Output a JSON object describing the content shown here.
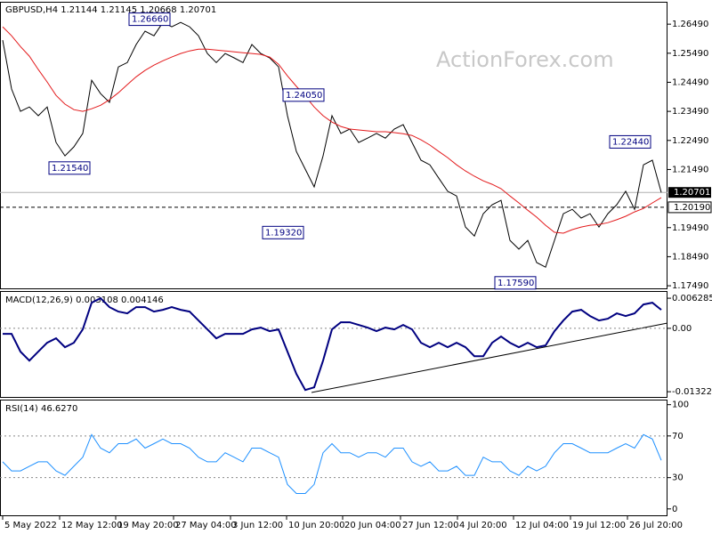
{
  "chart_data": [
    {
      "type": "line",
      "title": "GBPUSD,H4  1.21144 1.21145 1.20668 1.20701",
      "watermark": "ActionForex.com",
      "xlim": [
        -0.3,
        74.7
      ],
      "ylim": [
        1.1737,
        1.2726
      ],
      "yticks": [
        {
          "value": 1.2649,
          "label": "1.26490"
        },
        {
          "value": 1.2549,
          "label": "1.25490"
        },
        {
          "value": 1.2449,
          "label": "1.24490"
        },
        {
          "value": 1.2349,
          "label": "1.23490"
        },
        {
          "value": 1.2249,
          "label": "1.22490"
        },
        {
          "value": 1.2149,
          "label": "1.21490"
        },
        {
          "value": 1.1949,
          "label": "1.19490"
        },
        {
          "value": 1.1849,
          "label": "1.18490"
        },
        {
          "value": 1.1749,
          "label": "1.17490"
        }
      ],
      "series": [
        {
          "color": "#000000",
          "values": [
            1.2594,
            1.2426,
            1.2349,
            1.2364,
            1.2334,
            1.2364,
            1.2242,
            1.2196,
            1.2227,
            1.2273,
            1.2456,
            1.241,
            1.238,
            1.2502,
            1.2517,
            1.2579,
            1.2625,
            1.2609,
            1.2655,
            1.264,
            1.2655,
            1.264,
            1.2609,
            1.2548,
            1.2517,
            1.2548,
            1.2533,
            1.2517,
            1.2579,
            1.2548,
            1.2533,
            1.2502,
            1.2334,
            1.2211,
            1.215,
            1.2089,
            1.2196,
            1.2334,
            1.2273,
            1.2288,
            1.2242,
            1.2257,
            1.2273,
            1.2257,
            1.2288,
            1.2303,
            1.2242,
            1.2181,
            1.2165,
            1.2119,
            1.2074,
            1.2058,
            1.1951,
            1.192,
            1.1997,
            1.2028,
            1.2043,
            1.1905,
            1.1875,
            1.1905,
            1.1829,
            1.1813,
            1.1905,
            1.1997,
            1.2012,
            1.1982,
            1.1997,
            1.1951,
            1.1997,
            1.2028,
            1.2074,
            1.2012,
            1.2165,
            1.2181,
            1.207
          ]
        },
        {
          "color": "#e31a1c",
          "values": [
            1.264,
            1.2609,
            1.2572,
            1.2539,
            1.2493,
            1.245,
            1.2404,
            1.2374,
            1.2355,
            1.2349,
            1.2358,
            1.237,
            1.2389,
            1.2413,
            1.2441,
            1.2468,
            1.249,
            1.2508,
            1.2523,
            1.2536,
            1.2548,
            1.2557,
            1.2563,
            1.2563,
            1.256,
            1.2557,
            1.2554,
            1.2551,
            1.2548,
            1.2545,
            1.2536,
            1.2511,
            1.2471,
            1.2435,
            1.2401,
            1.2364,
            1.2334,
            1.2312,
            1.2297,
            1.2288,
            1.2285,
            1.2282,
            1.2279,
            1.2279,
            1.2276,
            1.2272,
            1.2266,
            1.2251,
            1.2233,
            1.2211,
            1.219,
            1.2165,
            1.2144,
            1.2126,
            1.211,
            1.2098,
            1.2083,
            1.2058,
            1.2034,
            1.2009,
            1.1985,
            1.1957,
            1.1933,
            1.193,
            1.1942,
            1.1951,
            1.1957,
            1.196,
            1.1966,
            1.1976,
            1.1988,
            1.2003,
            1.2015,
            1.2034,
            1.2052
          ]
        }
      ],
      "annotations": [
        {
          "value": 1.2666,
          "label": "1.26660"
        },
        {
          "value": 1.2154,
          "label": "1.21540"
        },
        {
          "value": 1.2405,
          "label": "1.24050"
        },
        {
          "value": 1.1932,
          "label": "1.19320"
        },
        {
          "value": 1.2244,
          "label": "1.22440"
        },
        {
          "value": 1.1759,
          "label": "1.17590"
        }
      ],
      "current": {
        "value": 1.20701,
        "label": "1.20701"
      },
      "level": {
        "value": 1.2019,
        "label": "1.20190"
      }
    },
    {
      "type": "line",
      "title": "MACD(12,26,9) 0.003108 0.004146",
      "xlim": [
        -0.3,
        74.7
      ],
      "ylim": [
        -0.0145,
        0.0076
      ],
      "yticks": [
        0.006285,
        {
          "value": 0,
          "label": "0.00"
        },
        -0.013223
      ],
      "levels": [
        0
      ],
      "series": [
        {
          "color": "#000080",
          "values": [
            -0.00115,
            -0.00115,
            -0.00487,
            -0.00673,
            -0.00487,
            -0.00301,
            -0.00208,
            -0.00394,
            -0.00301,
            -0.00022,
            0.00535,
            0.00628,
            0.00442,
            0.00349,
            0.00312,
            0.00442,
            0.00442,
            0.00349,
            0.00386,
            0.00442,
            0.00386,
            0.00349,
            0.00164,
            -0.00022,
            -0.00208,
            -0.00115,
            -0.00115,
            -0.00115,
            -0.00022,
            0.00015,
            -0.00059,
            -0.00022,
            -0.00487,
            -0.00951,
            -0.01286,
            -0.0123,
            -0.00673,
            -0.00022,
            0.00126,
            0.00126,
            0.00071,
            0.00015,
            -0.00059,
            0.00015,
            -0.00022,
            0.00071,
            -0.00022,
            -0.00301,
            -0.00394,
            -0.00301,
            -0.00394,
            -0.00301,
            -0.00394,
            -0.0058,
            -0.0058,
            -0.00301,
            -0.00171,
            -0.00301,
            -0.00394,
            -0.00301,
            -0.00394,
            -0.00357,
            -0.00059,
            0.00164,
            0.00349,
            0.00386,
            0.00256,
            0.00164,
            0.00201,
            0.00312,
            0.00256,
            0.00312,
            0.00498,
            0.00535,
            0.00386
          ]
        }
      ]
    },
    {
      "type": "line",
      "title": "RSI(14) 46.6270",
      "xlim": [
        -0.3,
        74.7
      ],
      "ylim": [
        -7,
        104
      ],
      "yticks": [
        100,
        70,
        30,
        0
      ],
      "levels": [
        70,
        30
      ],
      "series": [
        {
          "color": "#1e90ff",
          "values": [
            45.2,
            36.5,
            36.5,
            40.9,
            45.2,
            45.2,
            36.5,
            32.2,
            40.9,
            49.6,
            71.3,
            58.3,
            53.9,
            62.6,
            62.6,
            67,
            58.3,
            62.6,
            67,
            62.6,
            62.6,
            58.3,
            49.6,
            45.2,
            45.2,
            53.9,
            49.6,
            45.2,
            58.3,
            58.3,
            53.9,
            49.6,
            23.5,
            14.8,
            14.8,
            23.5,
            53.9,
            62.6,
            53.9,
            53.9,
            49.6,
            53.9,
            53.9,
            49.6,
            58.3,
            58.3,
            45.2,
            40.9,
            45.2,
            36.5,
            36.5,
            40.9,
            32.2,
            32.2,
            49.6,
            45.2,
            45.2,
            36.5,
            32.2,
            40.9,
            36.5,
            40.9,
            53.9,
            62.6,
            62.6,
            58.3,
            53.9,
            53.9,
            53.9,
            58.3,
            62.6,
            58.3,
            71.3,
            67,
            46.6
          ]
        }
      ],
      "xticks": [
        {
          "value": 0,
          "label": "5 May 2022"
        },
        {
          "value": 6.4,
          "label": "12 May 12:00"
        },
        {
          "value": 12.7,
          "label": "19 May 20:00"
        },
        {
          "value": 19.2,
          "label": "27 May 04:00"
        },
        {
          "value": 25.6,
          "label": "3 Jun 12:00"
        },
        {
          "value": 31.9,
          "label": "10 Jun 20:00"
        },
        {
          "value": 38.2,
          "label": "20 Jun 04:00"
        },
        {
          "value": 44.7,
          "label": "27 Jun 12:00"
        },
        {
          "value": 51.1,
          "label": "4 Jul 20:00"
        },
        {
          "value": 57.4,
          "label": "12 Jul 04:00"
        },
        {
          "value": 63.8,
          "label": "19 Jul 12:00"
        },
        {
          "value": 70.2,
          "label": "26 Jul 20:00"
        }
      ]
    }
  ]
}
